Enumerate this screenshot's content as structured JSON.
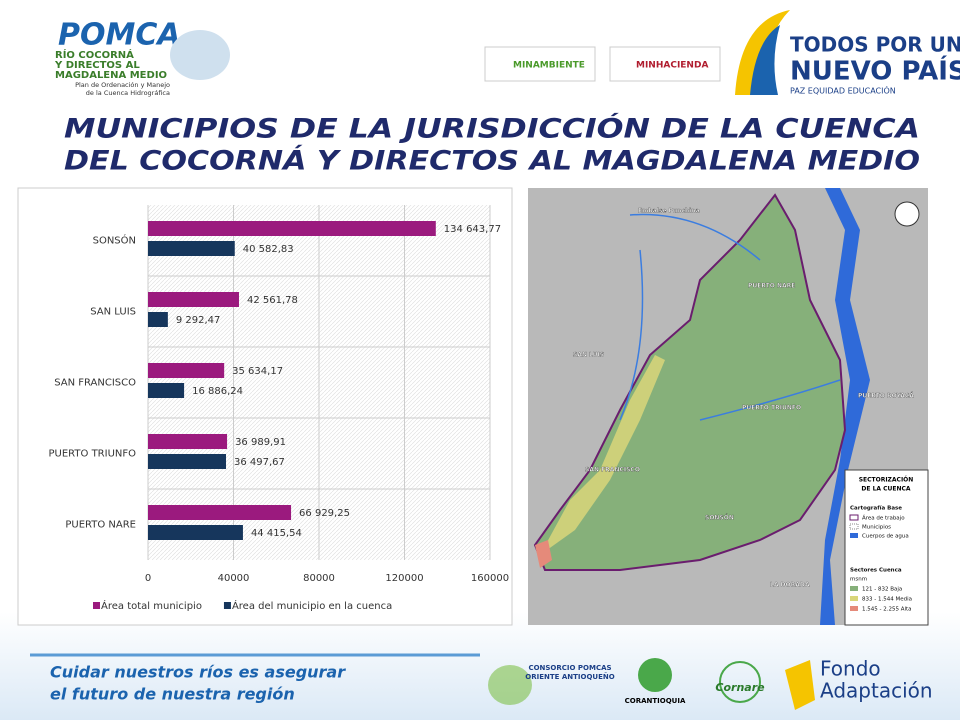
{
  "header": {
    "pomca": "POMCA",
    "basin_lines": [
      "RÍO COCORNÁ",
      "Y DIRECTOS AL",
      "MAGDALENA MEDIO"
    ],
    "plan_lines": [
      "Plan de Ordenación y Manejo",
      "de la Cuenca Hidrográfica"
    ],
    "ministries": [
      "MINAMBIENTE",
      "MINHACIENDA"
    ],
    "gov_lines": [
      "TODOS POR UN",
      "NUEVO PAÍS"
    ],
    "gov_motto": "PAZ  EQUIDAD  EDUCACIÓN"
  },
  "title_lines": [
    "MUNICIPIOS DE LA JURISDICCIÓN  DE LA CUENCA",
    "DEL COCORNÁ Y DIRECTOS AL MAGDALENA MEDIO"
  ],
  "chart_data": {
    "type": "hbar",
    "categories": [
      "SONSÓN",
      "SAN LUIS",
      "SAN FRANCISCO",
      "PUERTO TRIUNFO",
      "PUERTO NARE"
    ],
    "series": [
      {
        "name": "Área total municipio",
        "color": "#9b1a7e",
        "values": [
          134643.77,
          42561.78,
          35634.17,
          36989.91,
          66929.25
        ],
        "value_labels": [
          "134 643,77",
          "42 561,78",
          "35 634,17",
          "36 989,91",
          "66 929,25"
        ]
      },
      {
        "name": "Área del municipio en la cuenca",
        "color": "#16365c",
        "values": [
          40582.83,
          9292.47,
          16886.24,
          36497.67,
          44415.54
        ],
        "value_labels": [
          "40 582,83",
          "9 292,47",
          "16 886,24",
          "36 497,67",
          "44 415,54"
        ]
      }
    ],
    "xlim": [
      0,
      160000
    ],
    "xticks": [
      0,
      40000,
      80000,
      120000,
      160000
    ],
    "grid": true,
    "legend": "bottom"
  },
  "map": {
    "places": [
      "Embalse Punchina",
      "PUERTO NARE",
      "SAN LUIS",
      "PUERTO TRIUNFO",
      "SAN FRANCISCO",
      "SONSÓN",
      "PUERTO BOYACÁ",
      "LA DORADA"
    ],
    "legend_title_lines": [
      "SECTORIZACIÓN",
      "DE LA CUENCA"
    ],
    "base_title": "Cartografía Base",
    "base_items": [
      "Área de trabajo",
      "Municipios",
      "Cuerpos de agua"
    ],
    "sectors_title": "Sectores Cuenca",
    "unit": "msnm",
    "sectors": [
      "121 - 832 Baja",
      "833 - 1.544 Media",
      "1.545 - 2.255 Alta"
    ]
  },
  "footer": {
    "slogan_lines": [
      "Cuidar nuestros ríos es asegurar",
      "el futuro de nuestra región"
    ],
    "logos": [
      "CONSORCIO POMCAS",
      "ORIENTE ANTIOQUEÑO",
      "CORANTIOQUIA",
      "Cornare",
      "Fondo",
      "Adaptación"
    ]
  }
}
